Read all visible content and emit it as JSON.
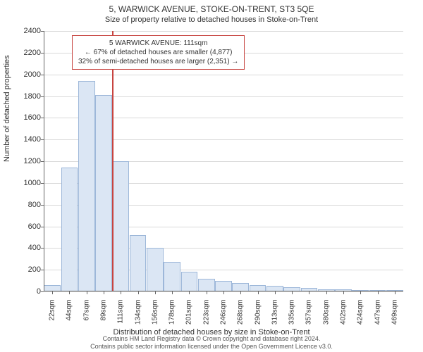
{
  "title": "5, WARWICK AVENUE, STOKE-ON-TRENT, ST3 5QE",
  "subtitle": "Size of property relative to detached houses in Stoke-on-Trent",
  "ylabel": "Number of detached properties",
  "xlabel": "Distribution of detached houses by size in Stoke-on-Trent",
  "footer_line1": "Contains HM Land Registry data © Crown copyright and database right 2024.",
  "footer_line2": "Contains public sector information licensed under the Open Government Licence v3.0.",
  "chart": {
    "type": "histogram",
    "ylim": [
      0,
      2400
    ],
    "ytick_step": 200,
    "bar_fill": "#dbe6f4",
    "bar_stroke": "#9db7d9",
    "grid_color": "#d9d9d9",
    "background": "#ffffff",
    "ref_line_color": "#c74440",
    "ref_value": 111,
    "categories": [
      "22sqm",
      "44sqm",
      "67sqm",
      "89sqm",
      "111sqm",
      "134sqm",
      "156sqm",
      "178sqm",
      "201sqm",
      "223sqm",
      "246sqm",
      "268sqm",
      "290sqm",
      "313sqm",
      "335sqm",
      "357sqm",
      "380sqm",
      "402sqm",
      "424sqm",
      "447sqm",
      "469sqm"
    ],
    "values": [
      60,
      1140,
      1940,
      1810,
      1200,
      520,
      400,
      270,
      180,
      120,
      100,
      80,
      60,
      50,
      40,
      30,
      20,
      20,
      10,
      10,
      10
    ]
  },
  "annotation": {
    "line1": "5 WARWICK AVENUE: 111sqm",
    "line2": "← 67% of detached houses are smaller (4,877)",
    "line3": "32% of semi-detached houses are larger (2,351) →"
  }
}
